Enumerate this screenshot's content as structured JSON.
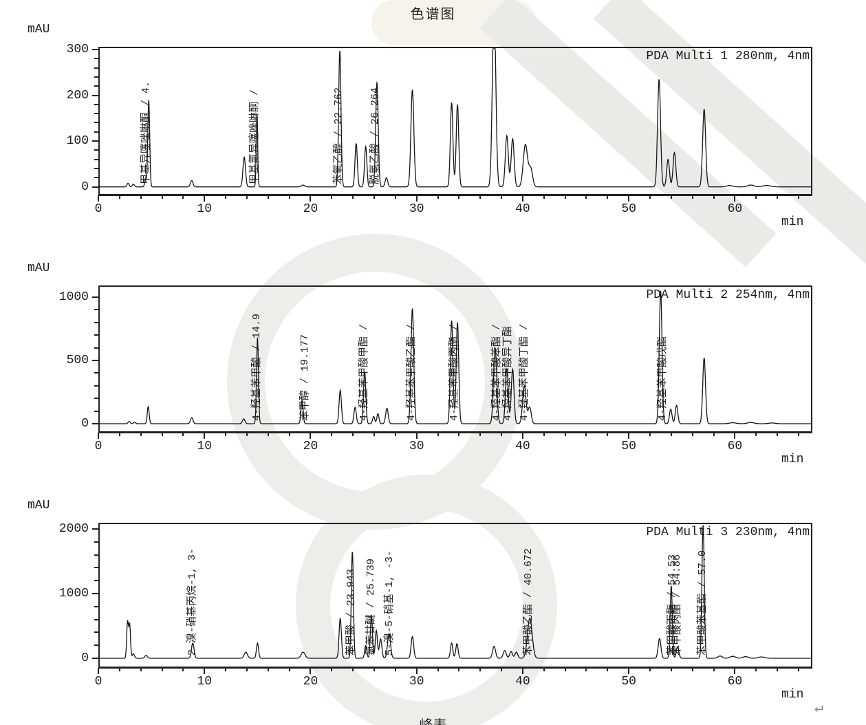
{
  "title": "色谱图",
  "footer": {
    "peak_table_label": "峰表",
    "return_mark": "↵"
  },
  "watermark_color": "#eaeae7",
  "trace_color": "#151515",
  "peaks_format": "[time_min, height_mAU, sigma_min]",
  "peak_labels_format": "[label_text, time_min_of_label_column]",
  "chart_data": [
    {
      "type": "line",
      "detector_label": "PDA Multi 1 280nm, 4nm",
      "ylabel": "mAU",
      "xlabel": "min",
      "ylim": [
        -20,
        306
      ],
      "yticks": [
        0,
        100,
        200,
        300
      ],
      "ytick_minor_step": 20,
      "xlim": [
        0,
        67.3
      ],
      "xticks": [
        0,
        10,
        20,
        30,
        40,
        50,
        60
      ],
      "xtick_minor_step": 2,
      "peaks": [
        [
          2.8,
          8,
          0.1
        ],
        [
          3.3,
          6,
          0.1
        ],
        [
          4.45,
          18,
          0.08
        ],
        [
          4.75,
          190,
          0.09
        ],
        [
          8.8,
          14,
          0.12
        ],
        [
          13.75,
          65,
          0.12
        ],
        [
          14.95,
          160,
          0.07
        ],
        [
          19.3,
          4,
          0.15
        ],
        [
          22.76,
          298,
          0.11
        ],
        [
          24.3,
          95,
          0.11
        ],
        [
          25.2,
          88,
          0.11
        ],
        [
          26.26,
          228,
          0.12
        ],
        [
          27.15,
          20,
          0.12
        ],
        [
          29.6,
          212,
          0.14
        ],
        [
          33.3,
          184,
          0.12
        ],
        [
          33.85,
          180,
          0.12
        ],
        [
          37.3,
          400,
          0.16
        ],
        [
          38.5,
          112,
          0.14
        ],
        [
          39.05,
          105,
          0.14
        ],
        [
          40.25,
          92,
          0.2
        ],
        [
          40.75,
          40,
          0.18
        ],
        [
          52.85,
          235,
          0.14
        ],
        [
          53.7,
          60,
          0.13
        ],
        [
          54.3,
          75,
          0.13
        ],
        [
          57.1,
          170,
          0.14
        ],
        [
          59.5,
          3,
          0.3
        ],
        [
          61.5,
          4,
          0.3
        ],
        [
          63,
          3,
          0.4
        ]
      ],
      "peak_labels": [
        [
          "甲基异噻唑啉酮 / 4.",
          4.95
        ],
        [
          "甲基氯异噻唑啉酮 /",
          15.2
        ],
        [
          "苯氧乙醇 / 22.762",
          23.05
        ],
        [
          "脱氢乙酸 / 26.264",
          26.55
        ]
      ]
    },
    {
      "type": "line",
      "detector_label": "PDA Multi 2 254nm, 4nm",
      "ylabel": "mAU",
      "xlabel": "min",
      "ylim": [
        -76,
        1092
      ],
      "yticks": [
        0,
        500,
        1000
      ],
      "ytick_minor_step": 100,
      "xlim": [
        0,
        67.3
      ],
      "xticks": [
        0,
        10,
        20,
        30,
        40,
        50,
        60
      ],
      "xtick_minor_step": 2,
      "peaks": [
        [
          2.9,
          18,
          0.1
        ],
        [
          3.4,
          12,
          0.1
        ],
        [
          4.7,
          135,
          0.09
        ],
        [
          8.8,
          48,
          0.12
        ],
        [
          13.7,
          38,
          0.12
        ],
        [
          15.0,
          680,
          0.09
        ],
        [
          19.2,
          185,
          0.1
        ],
        [
          22.8,
          265,
          0.11
        ],
        [
          24.2,
          130,
          0.11
        ],
        [
          25.1,
          410,
          0.11
        ],
        [
          25.95,
          58,
          0.1
        ],
        [
          26.35,
          80,
          0.1
        ],
        [
          27.2,
          122,
          0.12
        ],
        [
          29.6,
          910,
          0.13
        ],
        [
          33.3,
          815,
          0.12
        ],
        [
          33.85,
          800,
          0.12
        ],
        [
          37.4,
          600,
          0.15
        ],
        [
          38.5,
          430,
          0.13
        ],
        [
          39.05,
          430,
          0.13
        ],
        [
          40.15,
          300,
          0.16
        ],
        [
          40.65,
          130,
          0.15
        ],
        [
          53.0,
          1050,
          0.13
        ],
        [
          53.95,
          115,
          0.12
        ],
        [
          54.5,
          145,
          0.12
        ],
        [
          57.1,
          520,
          0.13
        ],
        [
          59.8,
          8,
          0.3
        ],
        [
          61.5,
          10,
          0.3
        ],
        [
          63.5,
          6,
          0.3
        ]
      ],
      "peak_labels": [
        [
          "4-羟基苯甲酸 / 14.9",
          15.35
        ],
        [
          "苯甲醇 / 19.177",
          19.9
        ],
        [
          "4-羟基苯甲酸甲酯 /",
          25.45
        ],
        [
          "4-羟基苯甲酸乙酯 /",
          29.95
        ],
        [
          "4-羟基苯甲酸丙酯 /",
          34.0
        ],
        [
          "4-羟基苯甲酸苯酯 /",
          38.0
        ],
        [
          "4-羟基苯甲酸异丁酯",
          39.0
        ],
        [
          "4-羟基苯甲酸丁酯 /",
          40.6
        ],
        [
          "4-羟基苯甲酸戊酯",
          53.6
        ]
      ]
    },
    {
      "type": "line",
      "detector_label": "PDA Multi 3 230nm, 4nm",
      "ylabel": "mAU",
      "xlabel": "min",
      "ylim": [
        -160,
        2095
      ],
      "yticks": [
        0,
        1000,
        2000
      ],
      "ytick_minor_step": 200,
      "xlim": [
        0,
        67.3
      ],
      "xticks": [
        0,
        10,
        20,
        30,
        40,
        50,
        60
      ],
      "xtick_minor_step": 2,
      "peaks": [
        [
          2.75,
          560,
          0.08
        ],
        [
          2.95,
          520,
          0.08
        ],
        [
          3.3,
          70,
          0.1
        ],
        [
          4.5,
          45,
          0.12
        ],
        [
          8.9,
          235,
          0.12
        ],
        [
          13.9,
          95,
          0.15
        ],
        [
          15.0,
          235,
          0.1
        ],
        [
          19.3,
          95,
          0.18
        ],
        [
          22.8,
          620,
          0.11
        ],
        [
          23.94,
          1650,
          0.1
        ],
        [
          25.2,
          195,
          0.1
        ],
        [
          25.74,
          660,
          0.1
        ],
        [
          26.2,
          430,
          0.1
        ],
        [
          26.6,
          300,
          0.12
        ],
        [
          27.4,
          380,
          0.14
        ],
        [
          29.6,
          335,
          0.12
        ],
        [
          33.3,
          235,
          0.11
        ],
        [
          33.8,
          225,
          0.11
        ],
        [
          37.3,
          185,
          0.14
        ],
        [
          38.3,
          120,
          0.14
        ],
        [
          38.9,
          105,
          0.13
        ],
        [
          39.4,
          95,
          0.13
        ],
        [
          40.67,
          620,
          0.22
        ],
        [
          52.9,
          305,
          0.13
        ],
        [
          54.0,
          1120,
          0.1
        ],
        [
          54.6,
          180,
          0.12
        ],
        [
          57.0,
          2060,
          0.11
        ],
        [
          58.6,
          35,
          0.2
        ],
        [
          59.8,
          30,
          0.25
        ],
        [
          61.0,
          25,
          0.25
        ],
        [
          62.5,
          20,
          0.3
        ]
      ],
      "peak_labels": [
        [
          "2-溴-硝基丙烷-1, 3-",
          9.3
        ],
        [
          "苯甲酸 / 23.943",
          24.25
        ],
        [
          "氯苯甘醚 / 25.739",
          26.1
        ],
        [
          "5-溴-5-硝基-1, -3-",
          27.9
        ],
        [
          "苯甲酸乙酯 / 40.672",
          41.0
        ],
        [
          "苯甲酸丙酯 / 54.53",
          54.55
        ],
        [
          "苯甲酸丙酯 / 54.86",
          54.95
        ],
        [
          "苯甲酸苯基酯 / 57.0",
          57.35
        ]
      ]
    }
  ]
}
